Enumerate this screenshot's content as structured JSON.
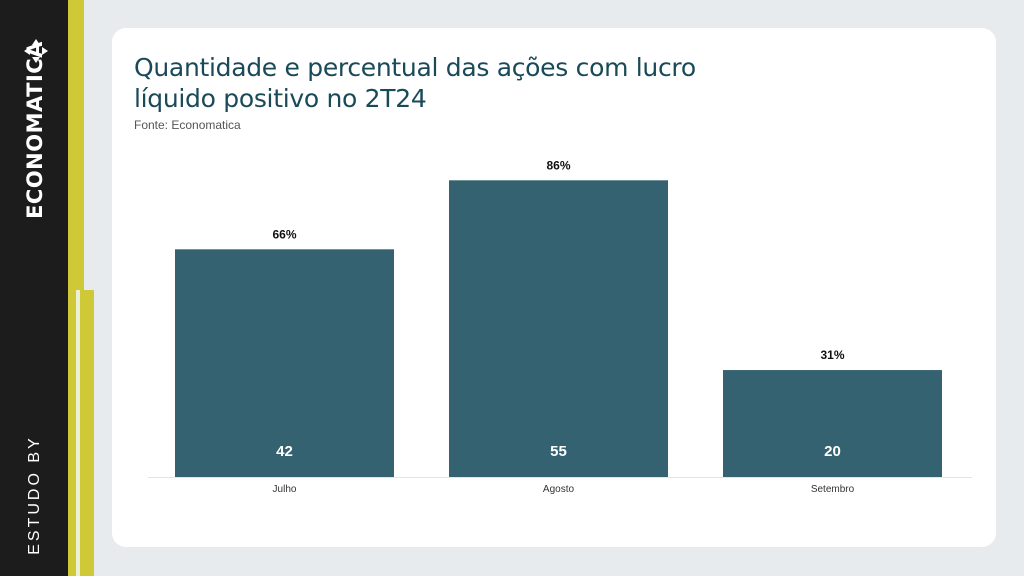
{
  "brand": {
    "name": "ECONOMATICA",
    "study_label": "ESTUDO BY",
    "arrows_icon": "triangle-arrows-icon"
  },
  "colors": {
    "bar": "#356270",
    "accent": "#cfc938",
    "title": "#1a4a58",
    "sidebar": "#1c1c1c"
  },
  "chart_data": {
    "type": "bar",
    "title": "Quantidade e percentual das ações com lucro líquido positivo no 2T24",
    "subtitle": "Fonte: Economatica",
    "categories": [
      "Julho",
      "Agosto",
      "Setembro"
    ],
    "values": [
      42,
      55,
      20
    ],
    "percent_labels": [
      "66%",
      "86%",
      "31%"
    ],
    "percent_values": [
      66,
      86,
      31
    ],
    "ylim": [
      0,
      100
    ],
    "grid": false,
    "legend": "none"
  }
}
